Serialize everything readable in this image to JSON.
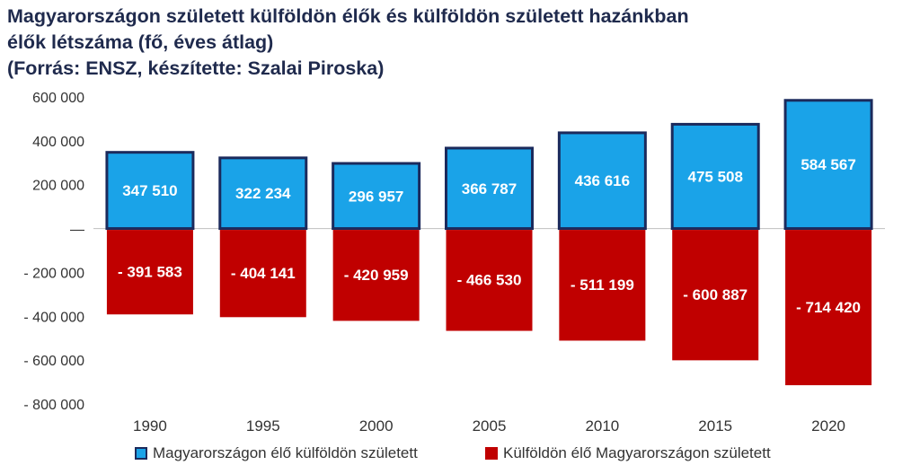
{
  "title_lines": [
    "Magyarországon született külföldön élők és külföldön született hazánkban",
    "élők létszáma (fő, éves átlag)",
    "(Forrás: ENSZ, készítette: Szalai Piroska)"
  ],
  "colors": {
    "positive_fill": "#1aa3e8",
    "positive_stroke": "#1b2a5c",
    "negative_fill": "#c00000",
    "text": "#333333",
    "title": "#1f2a4d",
    "axis": "#bfbfbf"
  },
  "chart_data": {
    "type": "bar",
    "stacked": true,
    "categories": [
      "1990",
      "1995",
      "2000",
      "2005",
      "2010",
      "2015",
      "2020"
    ],
    "series": [
      {
        "name": "Magyarországon élő külföldön született",
        "values": [
          347510,
          322234,
          296957,
          366787,
          436616,
          475508,
          584567
        ],
        "labels": [
          "347 510",
          "322 234",
          "296 957",
          "366 787",
          "436 616",
          "475 508",
          "584 567"
        ]
      },
      {
        "name": "Külföldön élő Magyarországon született",
        "values": [
          -391583,
          -404141,
          -420959,
          -466530,
          -511199,
          -600887,
          -714420
        ],
        "labels": [
          "- 391 583",
          "- 404 141",
          "- 420 959",
          "- 466 530",
          "- 511 199",
          "- 600 887",
          "- 714 420"
        ]
      }
    ],
    "ylim": [
      -800000,
      600000
    ],
    "y_ticks": [
      600000,
      400000,
      200000,
      0,
      -200000,
      -400000,
      -600000,
      -800000
    ],
    "y_tick_labels": [
      "600 000",
      "400 000",
      "200 000",
      "—",
      "- 200 000",
      "- 400 000",
      "- 600 000",
      "- 800 000"
    ],
    "legend_position": "bottom",
    "grid": false
  }
}
